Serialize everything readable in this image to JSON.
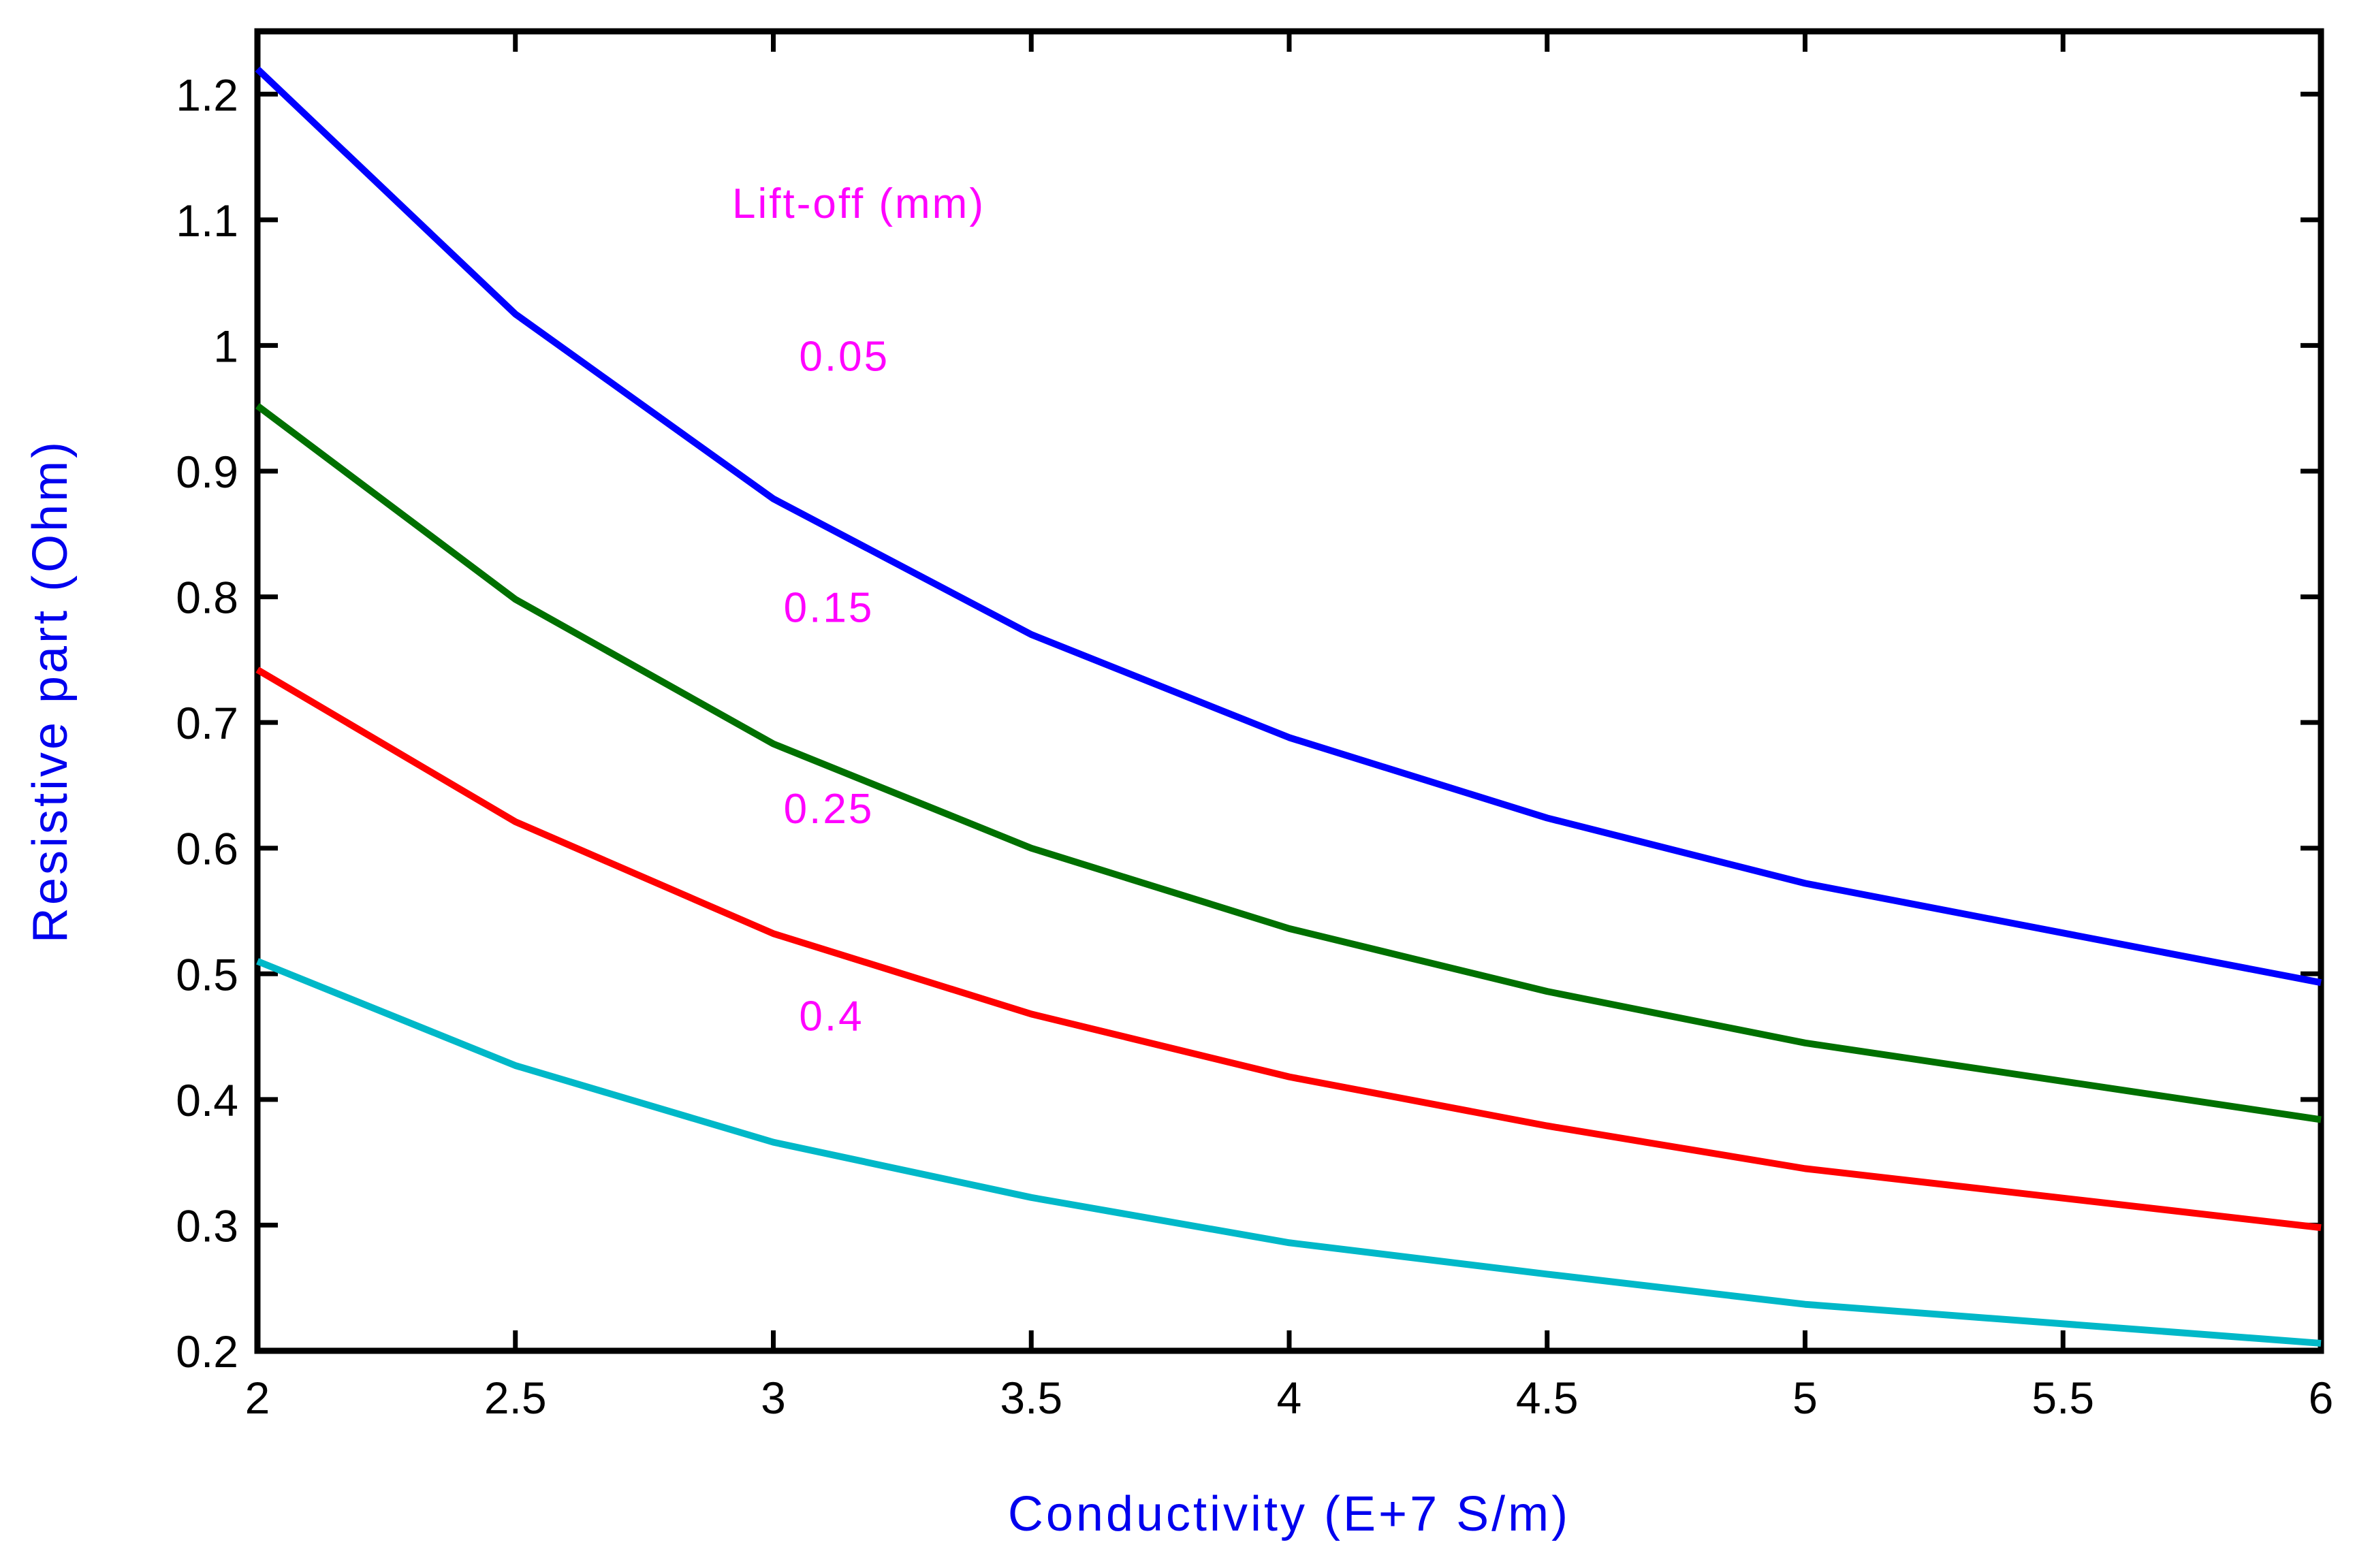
{
  "chart_data": {
    "type": "line",
    "title": "",
    "xlabel": "Conductivity (E+7 S/m)",
    "ylabel": "Resistive part (Ohm)",
    "xlim": [
      2,
      6
    ],
    "ylim": [
      0.2,
      1.25
    ],
    "x_ticks": [
      2,
      2.5,
      3,
      3.5,
      4,
      4.5,
      5,
      5.5,
      6
    ],
    "x_tick_labels": [
      "2",
      "2.5",
      "3",
      "3.5",
      "4",
      "4.5",
      "5",
      "5.5",
      "6"
    ],
    "y_ticks": [
      0.2,
      0.3,
      0.4,
      0.5,
      0.6,
      0.7,
      0.8,
      0.9,
      1.0,
      1.1,
      1.2
    ],
    "y_tick_labels": [
      "0.2",
      "0.3",
      "0.4",
      "0.5",
      "0.6",
      "0.7",
      "0.8",
      "0.9",
      "1",
      "1.1",
      "1.2"
    ],
    "grid": false,
    "legend_title": "Lift-off (mm)",
    "x": [
      2,
      2.5,
      3,
      3.5,
      4,
      4.5,
      5,
      6
    ],
    "series": [
      {
        "name": "0.05",
        "color": "#0000ff",
        "values": [
          1.22,
          1.025,
          0.878,
          0.77,
          0.688,
          0.624,
          0.572,
          0.493
        ],
        "label_at": [
          3.05,
          0.98
        ]
      },
      {
        "name": "0.15",
        "color": "#007000",
        "values": [
          0.952,
          0.798,
          0.683,
          0.6,
          0.536,
          0.486,
          0.445,
          0.384
        ],
        "label_at": [
          3.02,
          0.78
        ]
      },
      {
        "name": "0.25",
        "color": "#ff0000",
        "values": [
          0.742,
          0.621,
          0.532,
          0.468,
          0.418,
          0.379,
          0.345,
          0.298
        ],
        "label_at": [
          3.02,
          0.62
        ]
      },
      {
        "name": "0.4",
        "color": "#00b8c8",
        "values": [
          0.51,
          0.427,
          0.366,
          0.322,
          0.286,
          0.261,
          0.237,
          0.206
        ],
        "label_at": [
          3.05,
          0.455
        ]
      }
    ],
    "colors": {
      "axis_title": "#0000ee",
      "annotation": "#ff00ff",
      "axes": "#000000"
    }
  }
}
